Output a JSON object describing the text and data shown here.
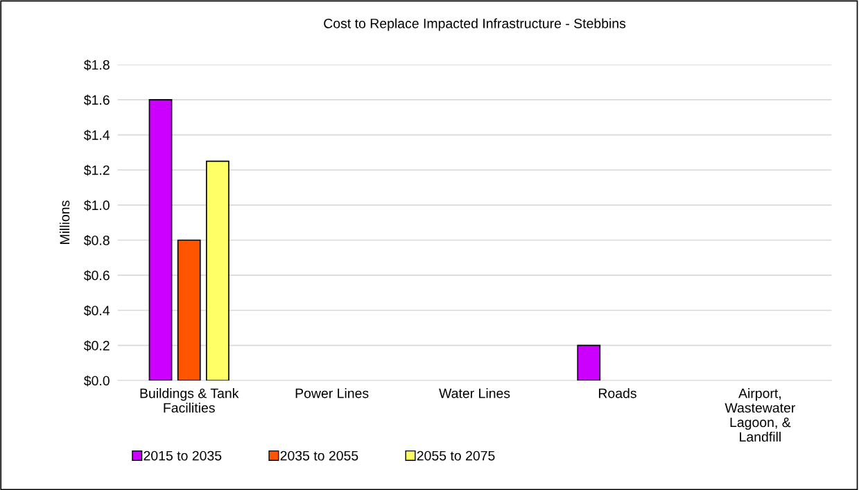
{
  "chart_data": {
    "type": "bar",
    "title": "Cost to Replace Impacted Infrastructure - Stebbins",
    "ylabel": "Millions",
    "categories": [
      "Buildings & Tank Facilities",
      "Power Lines",
      "Water Lines",
      "Roads",
      "Airport, Wastewater Lagoon, & Landfill"
    ],
    "series": [
      {
        "name": "2015 to 2035",
        "color": "#cc00ff",
        "values": [
          1.6,
          0,
          0,
          0.2,
          0
        ]
      },
      {
        "name": "2035 to 2055",
        "color": "#ff5500",
        "values": [
          0.8,
          0,
          0,
          0,
          0
        ]
      },
      {
        "name": "2055 to 2075",
        "color": "#ffff66",
        "values": [
          1.25,
          0,
          0,
          0,
          0
        ]
      }
    ],
    "ylim": [
      0,
      1.8
    ],
    "yticks": [
      {
        "value": 0,
        "label": "$0.0"
      },
      {
        "value": 0.2,
        "label": "$0.2"
      },
      {
        "value": 0.4,
        "label": "$0.4"
      },
      {
        "value": 0.6,
        "label": "$0.6"
      },
      {
        "value": 0.8,
        "label": "$0.8"
      },
      {
        "value": 1.0,
        "label": "$1.0"
      },
      {
        "value": 1.2,
        "label": "$1.2"
      },
      {
        "value": 1.4,
        "label": "$1.4"
      },
      {
        "value": 1.6,
        "label": "$1.6"
      },
      {
        "value": 1.8,
        "label": "$1.8"
      }
    ],
    "grid": "y",
    "legend": "bottom left"
  }
}
